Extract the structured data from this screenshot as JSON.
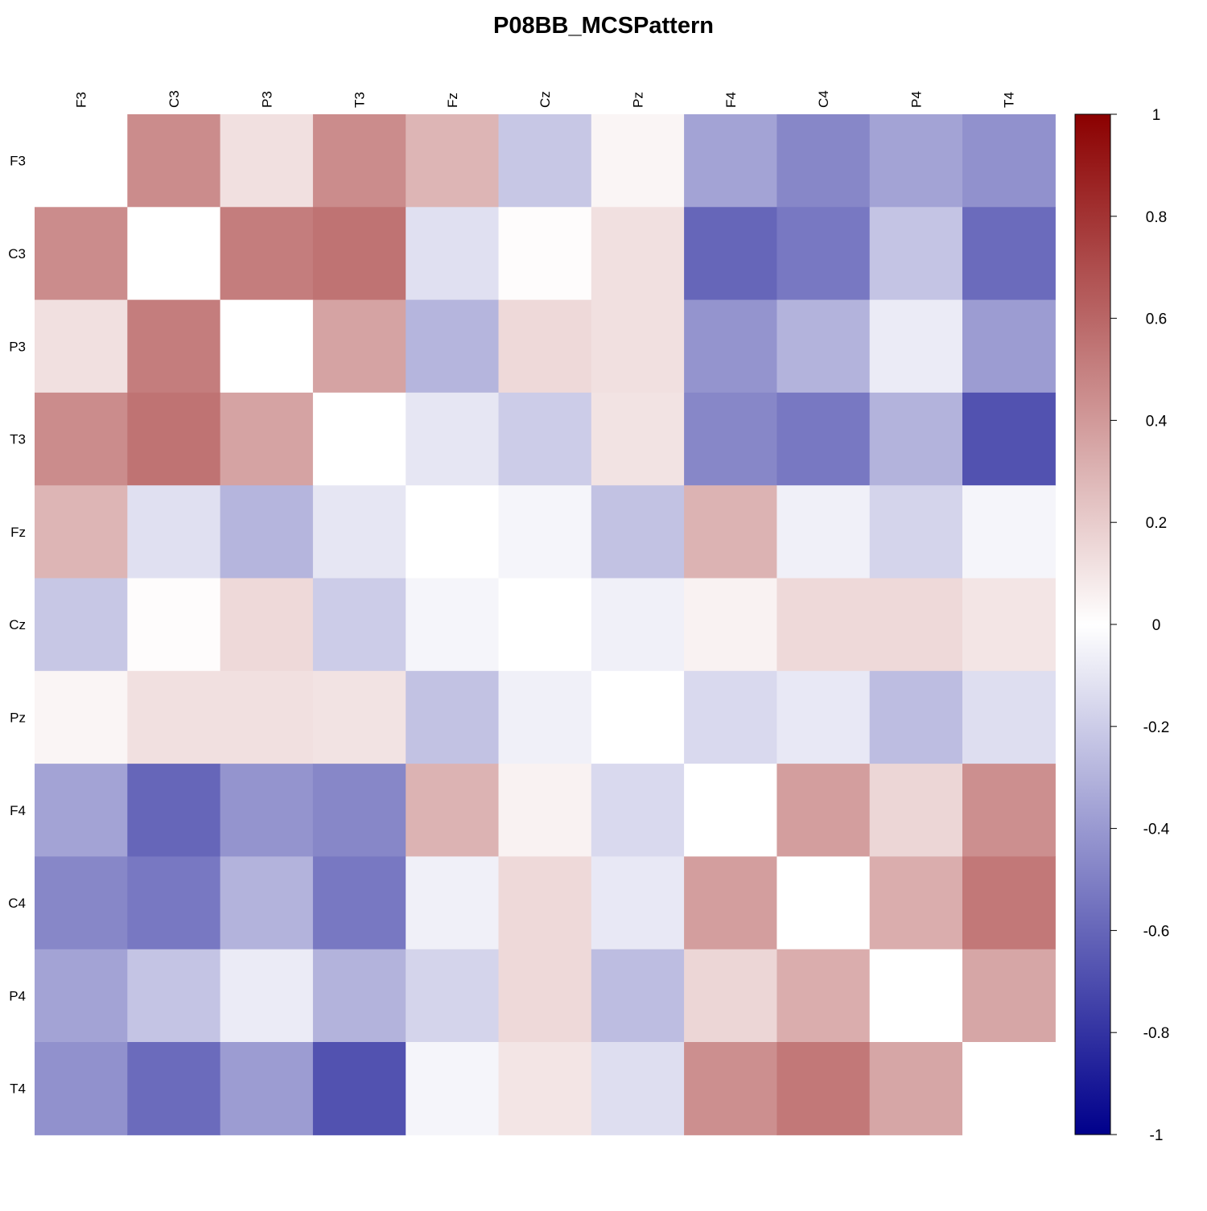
{
  "chart_data": {
    "type": "heatmap",
    "title": "P08BB_MCSPattern",
    "xlabel": "",
    "ylabel": "",
    "row_labels": [
      "F3",
      "C3",
      "P3",
      "T3",
      "Fz",
      "Cz",
      "Pz",
      "F4",
      "C4",
      "P4",
      "T4"
    ],
    "col_labels": [
      "F3",
      "C3",
      "P3",
      "T3",
      "Fz",
      "Cz",
      "Pz",
      "F4",
      "C4",
      "P4",
      "T4"
    ],
    "values": [
      [
        0,
        0.45,
        0.12,
        0.45,
        0.29,
        -0.22,
        0.04,
        -0.36,
        -0.47,
        -0.36,
        -0.43
      ],
      [
        0.45,
        0,
        0.51,
        0.55,
        -0.12,
        0.01,
        0.12,
        -0.6,
        -0.53,
        -0.23,
        -0.58
      ],
      [
        0.12,
        0.51,
        0,
        0.36,
        -0.29,
        0.15,
        0.12,
        -0.42,
        -0.3,
        -0.08,
        -0.39
      ],
      [
        0.45,
        0.55,
        0.36,
        0,
        -0.1,
        -0.2,
        0.11,
        -0.47,
        -0.53,
        -0.3,
        -0.68
      ],
      [
        0.29,
        -0.12,
        -0.29,
        -0.1,
        0,
        -0.04,
        -0.24,
        0.3,
        -0.06,
        -0.17,
        -0.04
      ],
      [
        -0.22,
        0.01,
        0.15,
        -0.2,
        -0.04,
        0,
        -0.06,
        0.05,
        0.15,
        0.15,
        0.1
      ],
      [
        0.04,
        0.12,
        0.12,
        0.11,
        -0.24,
        -0.06,
        0,
        -0.15,
        -0.09,
        -0.26,
        -0.13
      ],
      [
        -0.36,
        -0.6,
        -0.42,
        -0.47,
        0.3,
        0.05,
        -0.15,
        0,
        0.38,
        0.16,
        0.44
      ],
      [
        -0.47,
        -0.53,
        -0.3,
        -0.53,
        -0.06,
        0.15,
        -0.09,
        0.38,
        0,
        0.32,
        0.53
      ],
      [
        -0.36,
        -0.23,
        -0.08,
        -0.3,
        -0.17,
        0.15,
        -0.26,
        0.16,
        0.32,
        0,
        0.35
      ],
      [
        -0.43,
        -0.58,
        -0.39,
        -0.68,
        -0.04,
        0.1,
        -0.13,
        0.44,
        0.53,
        0.35,
        0
      ]
    ],
    "diagonal_blank": true,
    "zlim": [
      -1,
      1
    ],
    "colorbar_ticks": [
      1,
      0.8,
      0.6,
      0.4,
      0.2,
      0,
      -0.2,
      -0.4,
      -0.6,
      -0.8,
      -1
    ],
    "colors": {
      "low": "#00008b",
      "mid": "#ffffff",
      "high": "#8b0000"
    },
    "legend_position": "right",
    "grid": false
  }
}
